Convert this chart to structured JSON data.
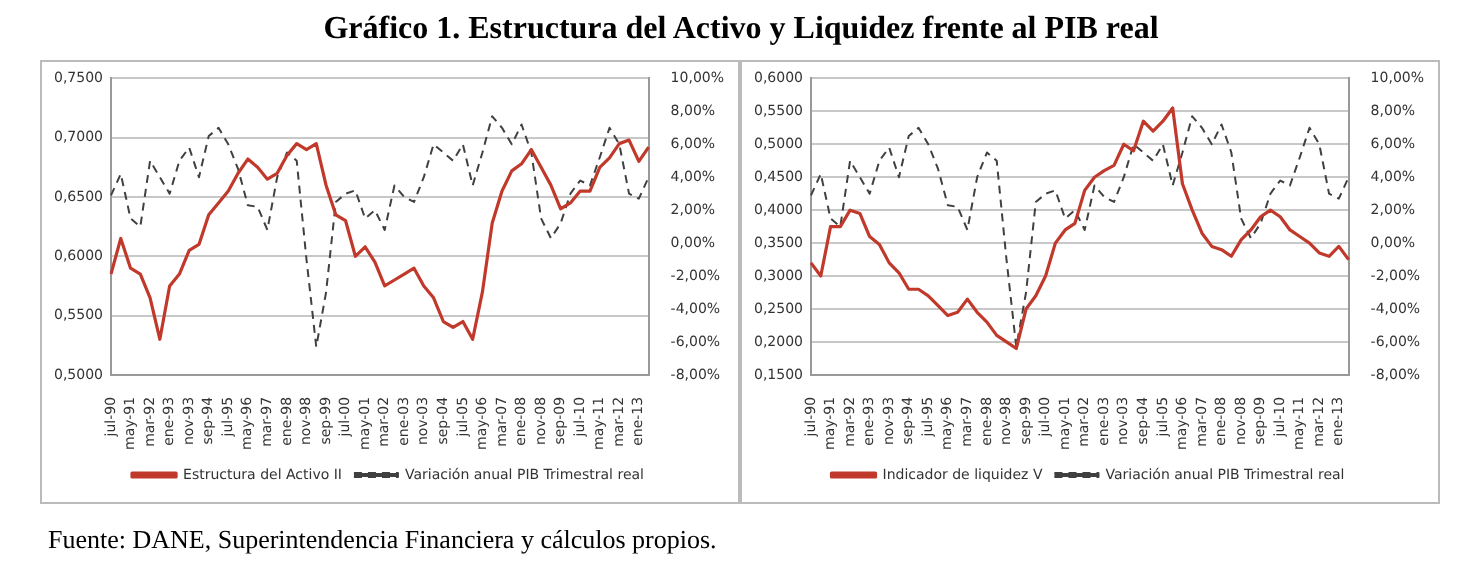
{
  "chart_data": [
    {
      "type": "line",
      "title": "Gráfico 1. Estructura del Activo y Liquidez frente al PIB real",
      "annotations": [
        "Fuente: DANE, Superintendencia Financiera y cálculos propios."
      ],
      "categories": [
        "jul-90",
        null,
        "may-91",
        null,
        "mar-92",
        null,
        "ene-93",
        null,
        "nov-93",
        null,
        "sep-94",
        null,
        "jul-95",
        null,
        "may-96",
        null,
        "mar-97",
        null,
        "ene-98",
        null,
        "nov-98",
        null,
        "sep-99",
        null,
        "jul-00",
        null,
        "may-01",
        null,
        "mar-02",
        null,
        "ene-03",
        null,
        "nov-03",
        null,
        "sep-04",
        null,
        "jul-05",
        null,
        "may-06",
        null,
        "mar-07",
        null,
        "ene-08",
        null,
        "nov-08",
        null,
        "sep-09",
        null,
        "jul-10",
        null,
        "may-11",
        null,
        "mar-12",
        null,
        "ene-13",
        null
      ],
      "series": [
        {
          "name": "Estructura del Activo II",
          "color": "#c0392b",
          "line_style": "solid",
          "values": [
            0.585,
            0.615,
            0.59,
            0.585,
            0.565,
            0.53,
            0.575,
            0.585,
            0.605,
            0.61,
            0.635,
            0.645,
            0.655,
            0.67,
            0.682,
            0.675,
            0.665,
            0.67,
            0.685,
            0.695,
            0.69,
            0.695,
            0.66,
            0.635,
            0.63,
            0.6,
            0.608,
            0.595,
            0.575,
            0.58,
            0.585,
            0.59,
            0.575,
            0.565,
            0.545,
            0.54,
            0.545,
            0.53,
            0.57,
            0.628,
            0.655,
            0.672,
            0.678,
            0.69,
            0.675,
            0.66,
            0.64,
            0.645,
            0.655,
            0.655,
            0.675,
            0.683,
            0.695,
            0.698,
            0.68,
            0.692
          ]
        },
        {
          "name": "Variación anual PIB Trimestral real",
          "color": "#404040",
          "line_style": "dashed",
          "axis": "y2",
          "values": [
            2.9,
            4.2,
            1.5,
            1.0,
            5.0,
            4.0,
            3.0,
            5.0,
            5.8,
            4.0,
            6.5,
            7.0,
            6.0,
            4.5,
            2.3,
            2.2,
            0.8,
            4.0,
            5.5,
            5.0,
            -1.0,
            -6.3,
            -3.0,
            2.5,
            3.0,
            3.2,
            1.5,
            2.0,
            0.8,
            3.5,
            2.8,
            2.5,
            4.0,
            6.0,
            5.5,
            5.0,
            6.0,
            3.5,
            5.5,
            7.7,
            7.0,
            6.0,
            7.2,
            5.5,
            1.5,
            0.3,
            1.2,
            3.0,
            3.8,
            3.5,
            5.2,
            7.0,
            6.0,
            3.0,
            2.7,
            4.0
          ]
        }
      ],
      "ylim": [
        0.5,
        0.75
      ],
      "yticks": [
        {
          "value": 0.5,
          "label": "0,5000"
        },
        {
          "value": 0.55,
          "label": "0,5500"
        },
        {
          "value": 0.6,
          "label": "0,6000"
        },
        {
          "value": 0.65,
          "label": "0,6500"
        },
        {
          "value": 0.7,
          "label": "0,7000"
        },
        {
          "value": 0.75,
          "label": "0,7500"
        }
      ],
      "y2lim": [
        -8,
        10
      ],
      "y2ticks": [
        {
          "value": -8,
          "label": "-8,00%"
        },
        {
          "value": -6,
          "label": "-6,00%"
        },
        {
          "value": -4,
          "label": "-4,00%"
        },
        {
          "value": -2,
          "label": "-2,00%"
        },
        {
          "value": 0,
          "label": "0,00%"
        },
        {
          "value": 2,
          "label": "2,00%"
        },
        {
          "value": 4,
          "label": "4,00%"
        },
        {
          "value": 6,
          "label": "6,00%"
        },
        {
          "value": 8,
          "label": "8,00%"
        },
        {
          "value": 10,
          "label": "10,00%"
        }
      ],
      "grid": "y",
      "legend": "bottom",
      "marker": "none"
    },
    {
      "type": "line",
      "categories": [
        "jul-90",
        null,
        "may-91",
        null,
        "mar-92",
        null,
        "ene-93",
        null,
        "nov-93",
        null,
        "sep-94",
        null,
        "jul-95",
        null,
        "may-96",
        null,
        "mar-97",
        null,
        "ene-98",
        null,
        "nov-98",
        null,
        "sep-99",
        null,
        "jul-00",
        null,
        "may-01",
        null,
        "mar-02",
        null,
        "ene-03",
        null,
        "nov-03",
        null,
        "sep-04",
        null,
        "jul-05",
        null,
        "may-06",
        null,
        "mar-07",
        null,
        "ene-08",
        null,
        "nov-08",
        null,
        "sep-09",
        null,
        "jul-10",
        null,
        "may-11",
        null,
        "mar-12",
        null,
        "ene-13",
        null
      ],
      "series": [
        {
          "name": "Indicador de liquidez V",
          "color": "#c0392b",
          "line_style": "solid",
          "values": [
            0.32,
            0.3,
            0.375,
            0.375,
            0.4,
            0.395,
            0.36,
            0.348,
            0.32,
            0.305,
            0.28,
            0.28,
            0.27,
            0.255,
            0.24,
            0.245,
            0.265,
            0.245,
            0.23,
            0.21,
            0.2,
            0.19,
            0.25,
            0.27,
            0.3,
            0.35,
            0.37,
            0.38,
            0.43,
            0.45,
            0.46,
            0.468,
            0.5,
            0.49,
            0.535,
            0.52,
            0.535,
            0.555,
            0.44,
            0.4,
            0.365,
            0.345,
            0.34,
            0.33,
            0.355,
            0.37,
            0.39,
            0.4,
            0.39,
            0.37,
            0.36,
            0.35,
            0.335,
            0.33,
            0.345,
            0.325
          ]
        },
        {
          "name": "Variación anual PIB Trimestral real",
          "color": "#404040",
          "line_style": "dashed",
          "axis": "y2",
          "values": [
            2.9,
            4.2,
            1.5,
            1.0,
            5.0,
            4.0,
            3.0,
            5.0,
            5.8,
            4.0,
            6.5,
            7.0,
            6.0,
            4.5,
            2.3,
            2.2,
            0.8,
            4.0,
            5.5,
            5.0,
            -1.0,
            -6.3,
            -3.0,
            2.5,
            3.0,
            3.2,
            1.5,
            2.0,
            0.8,
            3.5,
            2.8,
            2.5,
            4.0,
            6.0,
            5.5,
            5.0,
            6.0,
            3.5,
            5.5,
            7.7,
            7.0,
            6.0,
            7.2,
            5.5,
            1.5,
            0.3,
            1.2,
            3.0,
            3.8,
            3.5,
            5.2,
            7.0,
            6.0,
            3.0,
            2.7,
            4.0
          ]
        }
      ],
      "ylim": [
        0.15,
        0.6
      ],
      "yticks": [
        {
          "value": 0.15,
          "label": "0,1500"
        },
        {
          "value": 0.2,
          "label": "0,2000"
        },
        {
          "value": 0.25,
          "label": "0,2500"
        },
        {
          "value": 0.3,
          "label": "0,3000"
        },
        {
          "value": 0.35,
          "label": "0,3500"
        },
        {
          "value": 0.4,
          "label": "0,4000"
        },
        {
          "value": 0.45,
          "label": "0,4500"
        },
        {
          "value": 0.5,
          "label": "0,5000"
        },
        {
          "value": 0.55,
          "label": "0,5500"
        },
        {
          "value": 0.6,
          "label": "0,6000"
        }
      ],
      "y2lim": [
        -8,
        10
      ],
      "y2ticks": [
        {
          "value": -8,
          "label": "-8,00%"
        },
        {
          "value": -6,
          "label": "-6,00%"
        },
        {
          "value": -4,
          "label": "-4,00%"
        },
        {
          "value": -2,
          "label": "-2,00%"
        },
        {
          "value": 0,
          "label": "0,00%"
        },
        {
          "value": 2,
          "label": "2,00%"
        },
        {
          "value": 4,
          "label": "4,00%"
        },
        {
          "value": 6,
          "label": "6,00%"
        },
        {
          "value": 8,
          "label": "8,00%"
        },
        {
          "value": 10,
          "label": "10,00%"
        }
      ],
      "grid": "y",
      "legend": "bottom",
      "marker": "none"
    }
  ]
}
